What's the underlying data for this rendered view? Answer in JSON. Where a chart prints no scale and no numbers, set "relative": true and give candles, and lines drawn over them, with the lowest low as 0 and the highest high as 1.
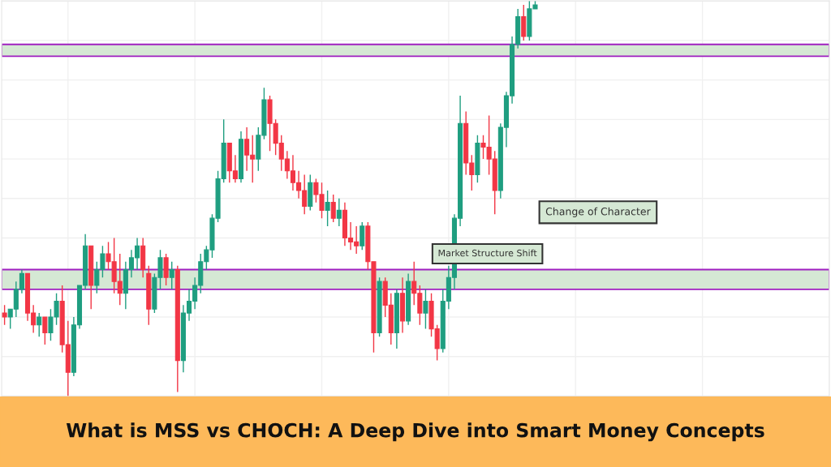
{
  "chart_data": {
    "type": "candlestick",
    "title": "What is MSS vs CHOCH: A Deep Dive into Smart Money Concepts",
    "relative": true,
    "grid": true,
    "categories": [
      null,
      null,
      null,
      null,
      null,
      null,
      null,
      null,
      null,
      null,
      null,
      null,
      null,
      null,
      null,
      null,
      null,
      null,
      null,
      null,
      null,
      null,
      null,
      null,
      null,
      null,
      null,
      null,
      null,
      null,
      null,
      null,
      null,
      null,
      null,
      null,
      null,
      null,
      null,
      null,
      null,
      null,
      null,
      null,
      null,
      null,
      null,
      null,
      null,
      null,
      null,
      null,
      null,
      null,
      null,
      null,
      null,
      null,
      null,
      null,
      null,
      null,
      null,
      null,
      null,
      null,
      null,
      null,
      null,
      null,
      null,
      null,
      null,
      null,
      null,
      null,
      null,
      null,
      null,
      null,
      null,
      null,
      null,
      null,
      null,
      null,
      null,
      null,
      null,
      null,
      null,
      null,
      null
    ],
    "ohlc": [
      [
        0.21,
        0.23,
        0.18,
        0.2
      ],
      [
        0.2,
        0.22,
        0.17,
        0.22
      ],
      [
        0.22,
        0.29,
        0.2,
        0.27
      ],
      [
        0.27,
        0.32,
        0.26,
        0.31
      ],
      [
        0.31,
        0.31,
        0.19,
        0.21
      ],
      [
        0.21,
        0.23,
        0.16,
        0.18
      ],
      [
        0.18,
        0.21,
        0.15,
        0.2
      ],
      [
        0.2,
        0.2,
        0.13,
        0.16
      ],
      [
        0.16,
        0.22,
        0.14,
        0.2
      ],
      [
        0.2,
        0.26,
        0.18,
        0.24
      ],
      [
        0.24,
        0.28,
        0.11,
        0.13
      ],
      [
        0.13,
        0.19,
        0.0,
        0.06
      ],
      [
        0.06,
        0.2,
        0.05,
        0.18
      ],
      [
        0.18,
        0.28,
        0.17,
        0.28
      ],
      [
        0.28,
        0.41,
        0.27,
        0.38
      ],
      [
        0.38,
        0.38,
        0.22,
        0.28
      ],
      [
        0.28,
        0.34,
        0.26,
        0.32
      ],
      [
        0.32,
        0.38,
        0.3,
        0.36
      ],
      [
        0.36,
        0.39,
        0.32,
        0.34
      ],
      [
        0.34,
        0.4,
        0.26,
        0.29
      ],
      [
        0.29,
        0.36,
        0.23,
        0.26
      ],
      [
        0.26,
        0.34,
        0.22,
        0.32
      ],
      [
        0.32,
        0.37,
        0.3,
        0.35
      ],
      [
        0.35,
        0.4,
        0.32,
        0.38
      ],
      [
        0.38,
        0.4,
        0.3,
        0.32
      ],
      [
        0.31,
        0.33,
        0.18,
        0.22
      ],
      [
        0.22,
        0.31,
        0.21,
        0.3
      ],
      [
        0.3,
        0.37,
        0.27,
        0.35
      ],
      [
        0.35,
        0.36,
        0.28,
        0.3
      ],
      [
        0.3,
        0.34,
        0.27,
        0.32
      ],
      [
        0.32,
        0.33,
        0.01,
        0.09
      ],
      [
        0.09,
        0.23,
        0.06,
        0.21
      ],
      [
        0.21,
        0.27,
        0.19,
        0.24
      ],
      [
        0.24,
        0.3,
        0.22,
        0.28
      ],
      [
        0.28,
        0.36,
        0.26,
        0.34
      ],
      [
        0.34,
        0.38,
        0.32,
        0.37
      ],
      [
        0.37,
        0.46,
        0.35,
        0.45
      ],
      [
        0.45,
        0.57,
        0.44,
        0.55
      ],
      [
        0.55,
        0.7,
        0.54,
        0.64
      ],
      [
        0.64,
        0.64,
        0.54,
        0.57
      ],
      [
        0.57,
        0.61,
        0.54,
        0.55
      ],
      [
        0.55,
        0.67,
        0.54,
        0.65
      ],
      [
        0.65,
        0.68,
        0.57,
        0.61
      ],
      [
        0.61,
        0.66,
        0.54,
        0.6
      ],
      [
        0.6,
        0.68,
        0.57,
        0.66
      ],
      [
        0.66,
        0.78,
        0.65,
        0.75
      ],
      [
        0.75,
        0.76,
        0.62,
        0.69
      ],
      [
        0.69,
        0.7,
        0.61,
        0.64
      ],
      [
        0.64,
        0.66,
        0.57,
        0.6
      ],
      [
        0.6,
        0.62,
        0.55,
        0.57
      ],
      [
        0.57,
        0.61,
        0.52,
        0.54
      ],
      [
        0.54,
        0.57,
        0.5,
        0.52
      ],
      [
        0.52,
        0.56,
        0.46,
        0.48
      ],
      [
        0.48,
        0.56,
        0.47,
        0.54
      ],
      [
        0.54,
        0.55,
        0.49,
        0.51
      ],
      [
        0.51,
        0.54,
        0.45,
        0.47
      ],
      [
        0.47,
        0.52,
        0.43,
        0.49
      ],
      [
        0.49,
        0.51,
        0.44,
        0.45
      ],
      [
        0.45,
        0.5,
        0.43,
        0.47
      ],
      [
        0.47,
        0.49,
        0.38,
        0.4
      ],
      [
        0.4,
        0.44,
        0.37,
        0.39
      ],
      [
        0.39,
        0.43,
        0.36,
        0.38
      ],
      [
        0.38,
        0.44,
        0.37,
        0.43
      ],
      [
        0.43,
        0.44,
        0.32,
        0.34
      ],
      [
        0.34,
        0.34,
        0.11,
        0.16
      ],
      [
        0.16,
        0.3,
        0.15,
        0.29
      ],
      [
        0.29,
        0.3,
        0.2,
        0.23
      ],
      [
        0.23,
        0.26,
        0.13,
        0.16
      ],
      [
        0.16,
        0.27,
        0.12,
        0.26
      ],
      [
        0.26,
        0.3,
        0.16,
        0.19
      ],
      [
        0.19,
        0.31,
        0.18,
        0.29
      ],
      [
        0.29,
        0.34,
        0.23,
        0.26
      ],
      [
        0.26,
        0.28,
        0.18,
        0.21
      ],
      [
        0.21,
        0.27,
        0.17,
        0.24
      ],
      [
        0.24,
        0.26,
        0.15,
        0.17
      ],
      [
        0.17,
        0.18,
        0.09,
        0.12
      ],
      [
        0.12,
        0.27,
        0.11,
        0.24
      ],
      [
        0.24,
        0.33,
        0.22,
        0.3
      ],
      [
        0.3,
        0.46,
        0.27,
        0.45
      ],
      [
        0.45,
        0.76,
        0.43,
        0.69
      ],
      [
        0.69,
        0.72,
        0.56,
        0.59
      ],
      [
        0.59,
        0.61,
        0.52,
        0.56
      ],
      [
        0.56,
        0.66,
        0.54,
        0.64
      ],
      [
        0.64,
        0.66,
        0.6,
        0.63
      ],
      [
        0.63,
        0.71,
        0.56,
        0.6
      ],
      [
        0.6,
        0.62,
        0.46,
        0.52
      ],
      [
        0.52,
        0.69,
        0.5,
        0.68
      ],
      [
        0.68,
        0.77,
        0.63,
        0.76
      ],
      [
        0.76,
        0.91,
        0.74,
        0.89
      ],
      [
        0.89,
        0.98,
        0.88,
        0.96
      ],
      [
        0.96,
        0.99,
        0.9,
        0.91
      ],
      [
        0.91,
        1.0,
        0.9,
        0.98
      ],
      [
        0.98,
        1.0,
        0.98,
        0.99
      ]
    ],
    "bands": [
      {
        "axis": "y",
        "from": 0.86,
        "to": 0.89,
        "color": "#d5e8d4"
      },
      {
        "axis": "y",
        "from": 0.27,
        "to": 0.32,
        "color": "#d5e8d4"
      }
    ],
    "annotations": [
      "Market Structure Shift",
      "Change of Character"
    ]
  }
}
